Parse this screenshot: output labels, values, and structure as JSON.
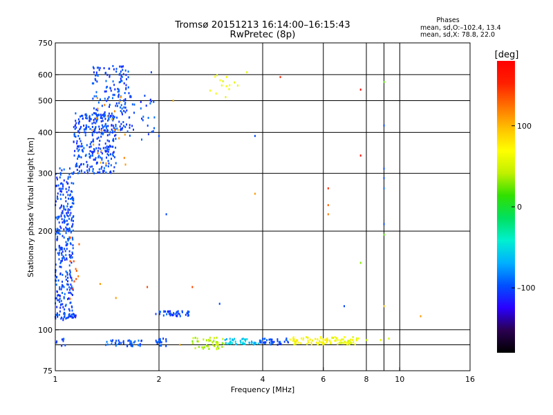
{
  "header": {
    "title_line1": "Tromsø 20151213 16:14:00–16:15:43",
    "title_line2": "RwPretec (8p)",
    "stats_title": "Phases",
    "stats_line1": "mean, sd,O:–102.4, 13.4",
    "stats_line2": "mean, sd,X:  78.8, 22.0"
  },
  "colorbar": {
    "label": "[deg]",
    "tick_values": [
      100,
      0,
      -100
    ],
    "tick_labels": [
      "100",
      "0",
      "–100"
    ],
    "range": [
      -180,
      180
    ],
    "colors": [
      "#000000",
      "#2a0050",
      "#2a00ff",
      "#0050ff",
      "#00b0ff",
      "#00f0d0",
      "#00e060",
      "#30e000",
      "#c0f000",
      "#ffff00",
      "#ffc000",
      "#ff7000",
      "#ff2000",
      "#ff0000"
    ]
  },
  "chart_data": {
    "type": "scatter",
    "title": "Tromsø 20151213 16:14:00–16:15:43",
    "subtitle": "RwPretec (8p)",
    "xlabel": "Frequency [MHz]",
    "ylabel": "Stationary phase Virtual Height [km]",
    "x_scale": "log",
    "y_scale": "log",
    "xlim": [
      1,
      16
    ],
    "ylim": [
      75,
      750
    ],
    "x_ticks": [
      1,
      2,
      4,
      6,
      8,
      10,
      16
    ],
    "x_tick_labels": [
      "1",
      "2",
      "4",
      "6",
      "8",
      "10",
      "16"
    ],
    "x_grid": [
      2,
      4,
      6,
      8,
      9,
      10
    ],
    "y_ticks": [
      75,
      100,
      200,
      300,
      400,
      500,
      600,
      750
    ],
    "y_tick_labels": [
      "75",
      "100",
      "200",
      "300",
      "400",
      "500",
      "600",
      "750"
    ],
    "y_grid": [
      90,
      100,
      200,
      300,
      400,
      500,
      600
    ],
    "grid": true,
    "color_by": "phase_deg",
    "clusters": [
      {
        "x": [
          1.0,
          1.13
        ],
        "y": [
          108,
          312
        ],
        "phase": -100,
        "n": 320
      },
      {
        "x": [
          1.1,
          1.18
        ],
        "y": [
          110,
          200
        ],
        "phase": 130,
        "n": 12
      },
      {
        "x": [
          1.13,
          1.5
        ],
        "y": [
          300,
          460
        ],
        "phase": -100,
        "n": 280
      },
      {
        "x": [
          1.28,
          1.65
        ],
        "y": [
          400,
          640
        ],
        "phase": -100,
        "n": 170
      },
      {
        "x": [
          1.25,
          1.6
        ],
        "y": [
          300,
          520
        ],
        "phase": 110,
        "n": 22
      },
      {
        "x": [
          1.55,
          1.95
        ],
        "y": [
          380,
          520
        ],
        "phase": -100,
        "n": 35
      },
      {
        "x": [
          1.0,
          1.15
        ],
        "y": [
          106,
          112
        ],
        "phase": -100,
        "n": 20
      },
      {
        "x": [
          1.0,
          1.08
        ],
        "y": [
          89,
          94
        ],
        "phase": -100,
        "n": 8
      },
      {
        "x": [
          1.4,
          1.8
        ],
        "y": [
          89,
          93
        ],
        "phase": -95,
        "n": 40
      },
      {
        "x": [
          1.95,
          2.45
        ],
        "y": [
          110,
          114
        ],
        "phase": -100,
        "n": 45
      },
      {
        "x": [
          1.95,
          2.12
        ],
        "y": [
          89,
          94
        ],
        "phase": -100,
        "n": 18
      },
      {
        "x": [
          2.5,
          3.1
        ],
        "y": [
          87,
          95
        ],
        "phase": 40,
        "n": 45
      },
      {
        "x": [
          3.1,
          3.9
        ],
        "y": [
          90,
          94
        ],
        "phase": -60,
        "n": 45
      },
      {
        "x": [
          3.9,
          4.8
        ],
        "y": [
          90,
          94
        ],
        "phase": -100,
        "n": 40
      },
      {
        "x": [
          4.8,
          6.2
        ],
        "y": [
          90,
          95
        ],
        "phase": 70,
        "n": 55
      },
      {
        "x": [
          6.2,
          7.6
        ],
        "y": [
          90,
          95
        ],
        "phase": 60,
        "n": 45
      },
      {
        "x": [
          2.8,
          3.4
        ],
        "y": [
          510,
          600
        ],
        "phase": 60,
        "n": 14
      }
    ],
    "points": [
      {
        "x": 1.9,
        "y": 610,
        "phase": -100
      },
      {
        "x": 2.0,
        "y": 390,
        "phase": -100
      },
      {
        "x": 2.1,
        "y": 225,
        "phase": -100
      },
      {
        "x": 2.2,
        "y": 500,
        "phase": 100
      },
      {
        "x": 3.6,
        "y": 610,
        "phase": 60
      },
      {
        "x": 3.8,
        "y": 390,
        "phase": -100
      },
      {
        "x": 3.8,
        "y": 260,
        "phase": 110
      },
      {
        "x": 4.5,
        "y": 590,
        "phase": 150
      },
      {
        "x": 6.2,
        "y": 270,
        "phase": 150
      },
      {
        "x": 6.2,
        "y": 240,
        "phase": 130
      },
      {
        "x": 6.2,
        "y": 225,
        "phase": 120
      },
      {
        "x": 7.7,
        "y": 540,
        "phase": 170
      },
      {
        "x": 7.7,
        "y": 340,
        "phase": 170
      },
      {
        "x": 7.7,
        "y": 160,
        "phase": 30
      },
      {
        "x": 6.9,
        "y": 118,
        "phase": -100
      },
      {
        "x": 9.0,
        "y": 570,
        "phase": 20
      },
      {
        "x": 9.0,
        "y": 420,
        "phase": -100
      },
      {
        "x": 9.0,
        "y": 310,
        "phase": -100
      },
      {
        "x": 9.0,
        "y": 290,
        "phase": -100
      },
      {
        "x": 9.0,
        "y": 270,
        "phase": -90
      },
      {
        "x": 9.0,
        "y": 210,
        "phase": -100
      },
      {
        "x": 9.0,
        "y": 195,
        "phase": 20
      },
      {
        "x": 9.0,
        "y": 118,
        "phase": 100
      },
      {
        "x": 11.5,
        "y": 110,
        "phase": 110
      },
      {
        "x": 2.5,
        "y": 135,
        "phase": 140
      },
      {
        "x": 1.85,
        "y": 135,
        "phase": 140
      },
      {
        "x": 3.0,
        "y": 120,
        "phase": -100
      },
      {
        "x": 2.3,
        "y": 90,
        "phase": 100
      },
      {
        "x": 1.5,
        "y": 125,
        "phase": 110
      },
      {
        "x": 1.35,
        "y": 138,
        "phase": 110
      },
      {
        "x": 8.0,
        "y": 93,
        "phase": 40
      },
      {
        "x": 8.8,
        "y": 93,
        "phase": 60
      },
      {
        "x": 9.3,
        "y": 94,
        "phase": 50
      }
    ]
  }
}
